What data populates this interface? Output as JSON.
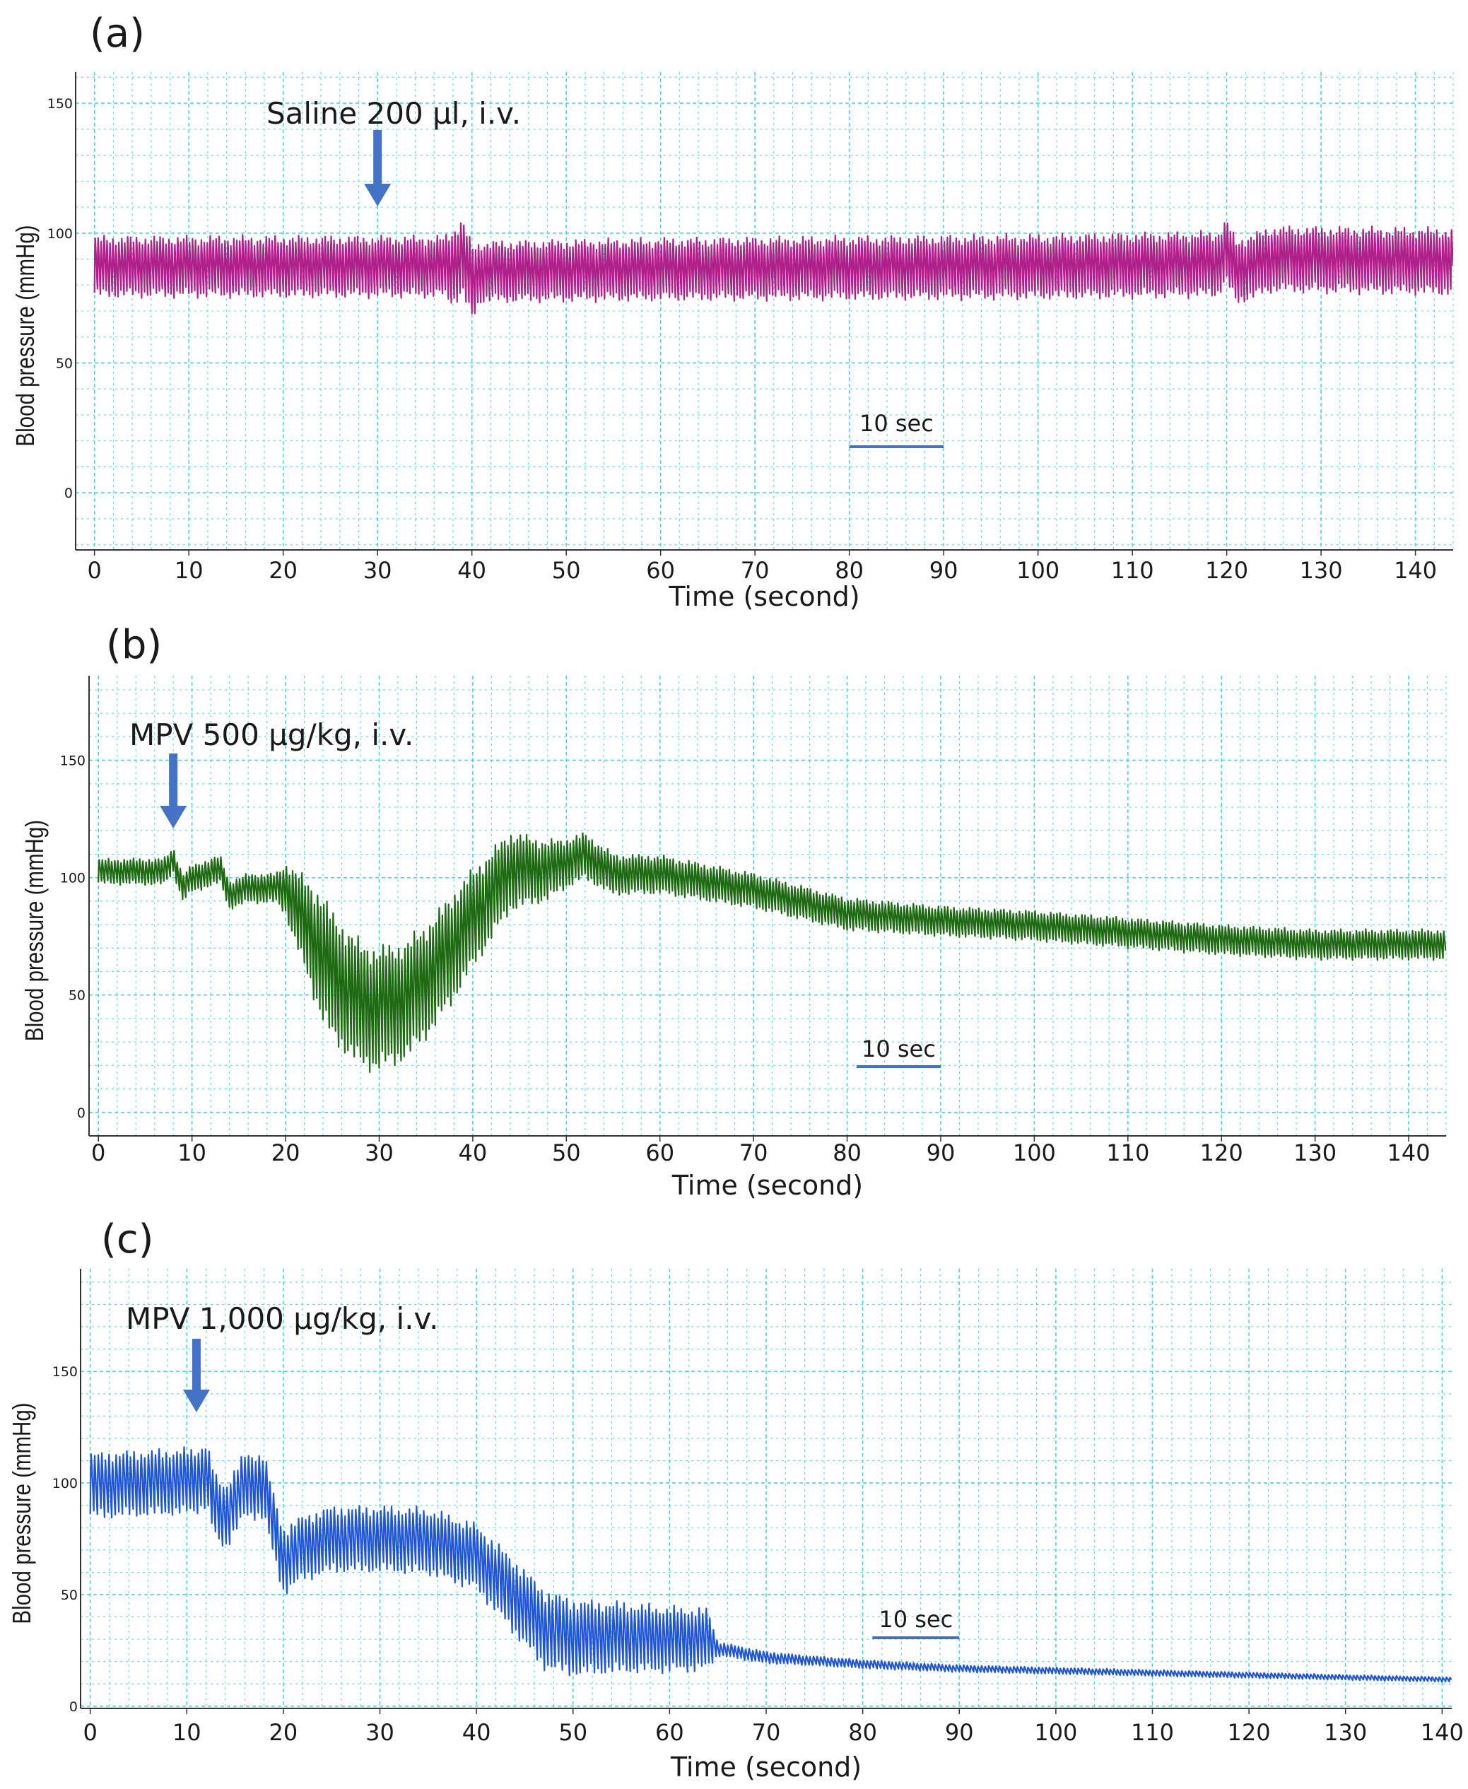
{
  "chart_data": [
    {
      "panel_label": "(a)",
      "type": "line",
      "title": "",
      "xlabel": "Time (second)",
      "ylabel": "Blood pressure (mmHg)",
      "xlim": [
        -2,
        144
      ],
      "ylim": [
        -22,
        162
      ],
      "x_ticks": [
        "0",
        "10",
        "20",
        "30",
        "40",
        "50",
        "60",
        "70",
        "80",
        "90",
        "100",
        "110",
        "120",
        "130",
        "140"
      ],
      "y_ticks": [
        "0",
        "50",
        "100",
        "150"
      ],
      "grid": true,
      "series": [
        {
          "color": "#b0208a",
          "beat_rate_per_s": 3.2,
          "mean_envelope": [
            [
              0,
              88
            ],
            [
              38,
              88
            ],
            [
              39,
              92
            ],
            [
              40,
              82
            ],
            [
              41,
              86
            ],
            [
              60,
              87
            ],
            [
              100,
              88
            ],
            [
              119,
              89
            ],
            [
              120,
              94
            ],
            [
              121,
              86
            ],
            [
              125,
              91
            ],
            [
              144,
              90
            ]
          ],
          "half_amplitude": [
            [
              0,
              11
            ],
            [
              37,
              11
            ],
            [
              38,
              14
            ],
            [
              40,
              14
            ],
            [
              41,
              11
            ],
            [
              144,
              12
            ]
          ]
        }
      ],
      "annotations": [
        {
          "text": "Saline 200 μl, i.v.",
          "arrow_x": 30
        },
        {
          "text": "10 sec",
          "scale_bar_from": 80,
          "scale_bar_to": 90
        }
      ],
      "line_color": "#b0208a"
    },
    {
      "panel_label": "(b)",
      "type": "line",
      "title": "",
      "xlabel": "Time (second)",
      "ylabel": "Blood pressure (mmHg)",
      "xlim": [
        -1,
        144
      ],
      "ylim": [
        -10,
        186
      ],
      "x_ticks": [
        "0",
        "10",
        "20",
        "30",
        "40",
        "50",
        "60",
        "70",
        "80",
        "90",
        "100",
        "110",
        "120",
        "130",
        "140"
      ],
      "y_ticks": [
        "0",
        "50",
        "100",
        "150"
      ],
      "grid": true,
      "series": [
        {
          "color": "#1e6a12",
          "beat_rate_per_s": 3.0,
          "mean_envelope": [
            [
              0,
              103
            ],
            [
              7,
              103
            ],
            [
              8,
              108
            ],
            [
              9,
              96
            ],
            [
              10,
              100
            ],
            [
              13,
              104
            ],
            [
              14,
              93
            ],
            [
              16,
              96
            ],
            [
              20,
              96
            ],
            [
              22,
              82
            ],
            [
              25,
              60
            ],
            [
              28,
              48
            ],
            [
              30,
              46
            ],
            [
              33,
              50
            ],
            [
              36,
              62
            ],
            [
              40,
              84
            ],
            [
              44,
              104
            ],
            [
              48,
              104
            ],
            [
              52,
              110
            ],
            [
              55,
              102
            ],
            [
              60,
              102
            ],
            [
              70,
              95
            ],
            [
              80,
              85
            ],
            [
              90,
              82
            ],
            [
              100,
              80
            ],
            [
              110,
              77
            ],
            [
              120,
              74
            ],
            [
              130,
              72
            ],
            [
              144,
              72
            ]
          ],
          "half_amplitude": [
            [
              0,
              5
            ],
            [
              19,
              6
            ],
            [
              21,
              15
            ],
            [
              24,
              26
            ],
            [
              30,
              25
            ],
            [
              38,
              22
            ],
            [
              44,
              16
            ],
            [
              50,
              10
            ],
            [
              56,
              8
            ],
            [
              70,
              7
            ],
            [
              90,
              6
            ],
            [
              144,
              6
            ]
          ]
        }
      ],
      "annotations": [
        {
          "text": "MPV 500 μg/kg, i.v.",
          "arrow_x": 8
        },
        {
          "text": "10 sec",
          "scale_bar_from": 81,
          "scale_bar_to": 90
        }
      ],
      "line_color": "#1e6a12"
    },
    {
      "panel_label": "(c)",
      "type": "line",
      "title": "",
      "xlabel": "Time (second)",
      "ylabel": "Blood pressure (mmHg)",
      "xlim": [
        -1,
        141
      ],
      "ylim": [
        -1,
        196
      ],
      "x_ticks": [
        "0",
        "10",
        "20",
        "30",
        "40",
        "50",
        "60",
        "70",
        "80",
        "90",
        "100",
        "110",
        "120",
        "130",
        "140"
      ],
      "y_ticks": [
        "0",
        "50",
        "100",
        "150"
      ],
      "grid": true,
      "series": [
        {
          "color": "#1f56d6",
          "beat_rate_per_s": 2.7,
          "mean_envelope": [
            [
              0,
              100
            ],
            [
              11,
              102
            ],
            [
              12,
              105
            ],
            [
              13,
              90
            ],
            [
              14,
              86
            ],
            [
              16,
              100
            ],
            [
              18,
              100
            ],
            [
              19,
              82
            ],
            [
              20,
              66
            ],
            [
              22,
              72
            ],
            [
              25,
              76
            ],
            [
              30,
              76
            ],
            [
              35,
              75
            ],
            [
              40,
              68
            ],
            [
              44,
              50
            ],
            [
              47,
              36
            ],
            [
              50,
              32
            ],
            [
              55,
              32
            ],
            [
              60,
              31
            ],
            [
              64,
              31
            ],
            [
              65,
              26
            ],
            [
              70,
              22
            ],
            [
              80,
              19
            ],
            [
              90,
              17
            ],
            [
              100,
              16
            ],
            [
              110,
              15
            ],
            [
              120,
              14
            ],
            [
              130,
              13
            ],
            [
              141,
              12
            ]
          ],
          "half_amplitude": [
            [
              0,
              14
            ],
            [
              18,
              14
            ],
            [
              20,
              14
            ],
            [
              35,
              14
            ],
            [
              40,
              14
            ],
            [
              44,
              16
            ],
            [
              47,
              17
            ],
            [
              55,
              15
            ],
            [
              64,
              13
            ],
            [
              65,
              3
            ],
            [
              75,
              2
            ],
            [
              90,
              1.5
            ],
            [
              141,
              1
            ]
          ]
        }
      ],
      "annotations": [
        {
          "text": "MPV 1,000 μg/kg, i.v.",
          "arrow_x": 11
        },
        {
          "text": "10 sec",
          "scale_bar_from": 81,
          "scale_bar_to": 90
        }
      ],
      "line_color": "#1f56d6"
    }
  ]
}
